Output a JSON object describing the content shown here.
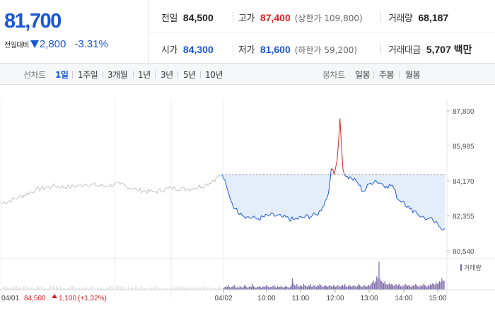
{
  "quote": {
    "price": "81,700",
    "change_label": "전일대비",
    "change": "2,800",
    "change_pct": "-3.31%",
    "prev_close_label": "전일",
    "prev_close": "84,500",
    "high_label": "고가",
    "high": "87,400",
    "upper_limit": "(상한가 109,800)",
    "volume_label": "거래량",
    "volume": "68,187",
    "open_label": "시가",
    "open": "84,300",
    "low_label": "저가",
    "low": "81,600",
    "lower_limit": "(하한가 59,200)",
    "value_label": "거래대금",
    "value": "5,707 백만"
  },
  "toolbar": {
    "line_title": "선차트",
    "ranges": [
      "1일",
      "1주일",
      "3개월",
      "1년",
      "3년",
      "5년",
      "10년"
    ],
    "active_range": "1일",
    "candle_title": "봉차트",
    "candles": [
      "일봉",
      "주봉",
      "월봉"
    ]
  },
  "chart_data": {
    "type": "line",
    "title": "",
    "y_ticks": [
      "87,800",
      "85,985",
      "84,170",
      "82,355",
      "80,540"
    ],
    "ylim": [
      80540,
      87800
    ],
    "prev_close_line": 84500,
    "x_ticks": [
      "04/02",
      "10:00",
      "11:00",
      "12:00",
      "13:00",
      "14:00",
      "15:00"
    ],
    "prev_day_label": "04/01",
    "prev_day_close": "84,500",
    "prev_day_change": "1,100",
    "prev_day_change_pct": "(+1.32%)",
    "volume_legend": "거래량",
    "colors": {
      "today_up": "#e02020",
      "today_down": "#1a56d6",
      "prev_day": "#c4c4c4",
      "fill": "#e4eefb",
      "volume": "#7b68a6"
    },
    "series": [
      {
        "session": "04/01",
        "time": [
          "09:00",
          "09:30",
          "10:00",
          "10:30",
          "11:00",
          "11:30",
          "12:00",
          "12:30",
          "13:00",
          "13:30",
          "14:00",
          "14:30",
          "15:00",
          "15:30"
        ],
        "values": [
          83000,
          83300,
          83700,
          83900,
          83850,
          84000,
          83900,
          84000,
          83700,
          83600,
          83800,
          83750,
          83950,
          84500
        ]
      },
      {
        "session": "04/02",
        "time": [
          "09:00",
          "09:10",
          "09:20",
          "09:30",
          "09:40",
          "10:00",
          "10:20",
          "10:40",
          "11:00",
          "11:20",
          "11:40",
          "11:50",
          "12:00",
          "12:05",
          "12:10",
          "12:15",
          "12:20",
          "12:25",
          "12:30",
          "12:40",
          "12:50",
          "13:00",
          "13:10",
          "13:20",
          "13:30",
          "13:40",
          "13:50",
          "14:00",
          "14:10",
          "14:20",
          "14:30",
          "14:40",
          "14:50",
          "15:00",
          "15:10",
          "15:20"
        ],
        "values": [
          84300,
          83400,
          82700,
          82500,
          82300,
          82200,
          82400,
          82300,
          82150,
          82300,
          82400,
          82800,
          83500,
          84800,
          84500,
          85200,
          87400,
          84800,
          84400,
          84300,
          84100,
          83600,
          84000,
          84200,
          84050,
          83900,
          83950,
          83200,
          83100,
          82700,
          82600,
          82300,
          82200,
          82100,
          81800,
          81700
        ]
      }
    ],
    "volume_values": [
      2,
      3,
      4,
      3,
      5,
      3,
      2,
      3,
      4,
      5,
      3,
      2,
      3,
      2,
      4,
      3,
      2,
      3,
      5,
      4,
      3,
      2,
      3,
      4,
      3,
      6,
      4,
      3,
      2,
      3,
      3,
      4,
      3,
      2,
      3,
      4,
      3,
      5,
      4,
      3,
      2,
      3,
      3,
      4,
      5,
      3,
      2,
      4,
      3,
      3,
      4,
      3,
      2,
      3,
      4,
      3,
      3,
      2,
      3,
      5,
      12,
      7,
      5,
      4,
      6,
      4,
      3,
      5,
      4,
      3,
      6,
      5,
      4,
      3,
      5,
      4,
      6,
      3,
      4,
      5,
      4,
      3,
      5,
      4,
      6,
      5,
      4,
      3,
      4,
      5,
      4,
      3,
      4,
      5,
      4,
      3,
      5,
      4,
      3,
      4,
      5,
      4,
      3,
      4,
      5,
      4,
      6,
      4,
      3,
      4,
      5,
      4,
      3,
      4,
      5,
      4,
      3,
      4,
      6,
      5,
      4,
      3,
      4,
      5,
      4,
      3,
      4,
      5,
      4,
      6,
      8,
      10,
      7,
      9,
      14,
      12,
      30,
      11,
      9,
      8,
      7,
      9,
      6,
      5,
      6,
      7,
      5,
      6,
      5,
      4,
      5,
      6,
      4,
      5,
      6,
      4,
      3,
      5,
      4,
      6,
      5,
      4,
      5,
      4,
      3,
      4,
      5,
      4,
      6,
      5,
      4,
      3,
      4,
      5,
      4,
      6,
      5,
      4,
      3,
      5,
      4,
      6,
      5,
      7,
      6,
      5,
      8,
      6,
      7,
      9,
      8,
      12,
      9,
      10
    ]
  }
}
